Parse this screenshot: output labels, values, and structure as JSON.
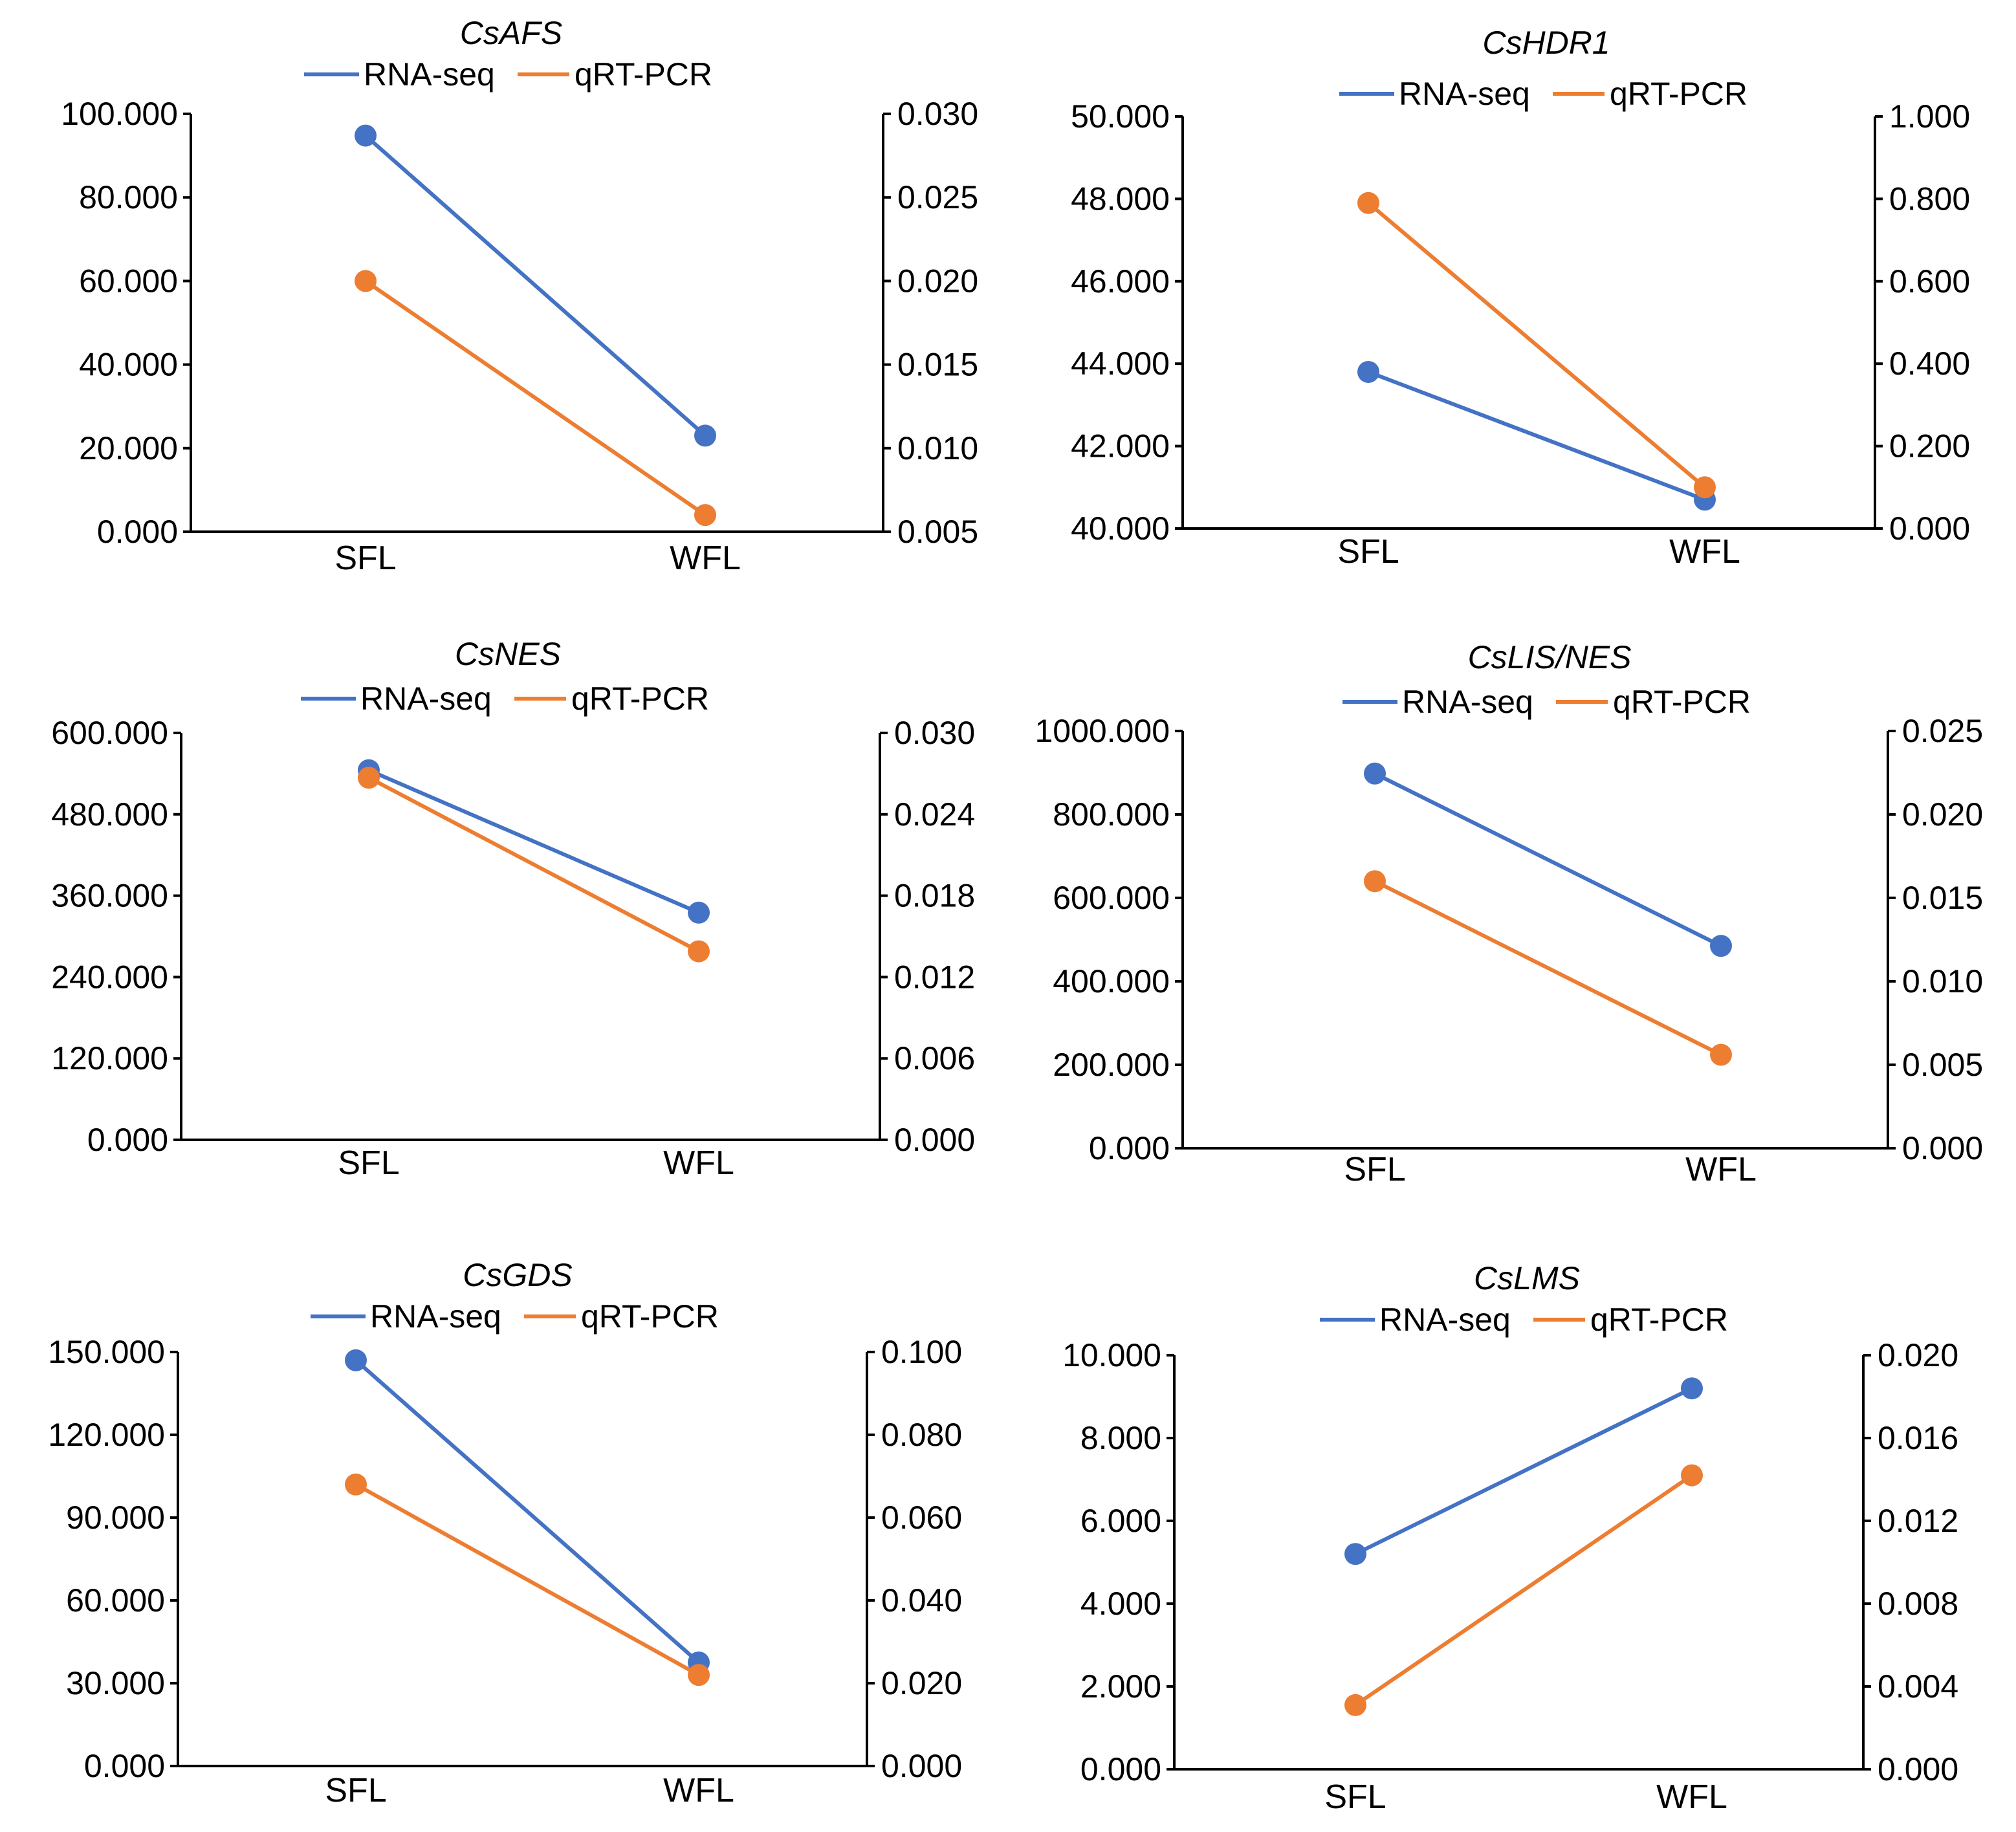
{
  "colors": {
    "rna_seq": "#4472C4",
    "qrt_pcr": "#ED7D31",
    "axis": "#000000"
  },
  "legend": {
    "rna_seq": "RNA-seq",
    "qrt_pcr": "qRT-PCR"
  },
  "chart_data": [
    {
      "type": "line",
      "title": "CsAFS",
      "categories": [
        "SFL",
        "WFL"
      ],
      "series": [
        {
          "name": "RNA-seq",
          "axis": "left",
          "values": [
            94.8,
            23.0
          ]
        },
        {
          "name": "qRT-PCR",
          "axis": "right",
          "values": [
            0.02,
            0.006
          ]
        }
      ],
      "y_left": {
        "min": 0,
        "max": 100,
        "ticks": [
          "100.000",
          "80.000",
          "60.000",
          "40.000",
          "20.000",
          "0.000"
        ]
      },
      "y_right": {
        "min": 0.005,
        "max": 0.03,
        "ticks": [
          "0.030",
          "0.025",
          "0.020",
          "0.015",
          "0.010",
          "0.005"
        ]
      }
    },
    {
      "type": "line",
      "title": "CsHDR1",
      "categories": [
        "SFL",
        "WFL"
      ],
      "series": [
        {
          "name": "RNA-seq",
          "axis": "left",
          "values": [
            43.8,
            40.7
          ]
        },
        {
          "name": "qRT-PCR",
          "axis": "right",
          "values": [
            0.79,
            0.1
          ]
        }
      ],
      "y_left": {
        "min": 40,
        "max": 50,
        "ticks": [
          "50.000",
          "48.000",
          "46.000",
          "44.000",
          "42.000",
          "40.000"
        ]
      },
      "y_right": {
        "min": 0,
        "max": 1.0,
        "ticks": [
          "1.000",
          "0.800",
          "0.600",
          "0.400",
          "0.200",
          "0.000"
        ]
      }
    },
    {
      "type": "line",
      "title": "CsNES",
      "categories": [
        "SFL",
        "WFL"
      ],
      "series": [
        {
          "name": "RNA-seq",
          "axis": "left",
          "values": [
            545,
            335
          ]
        },
        {
          "name": "qRT-PCR",
          "axis": "right",
          "values": [
            0.0267,
            0.0139
          ]
        }
      ],
      "y_left": {
        "min": 0,
        "max": 600,
        "ticks": [
          "600.000",
          "480.000",
          "360.000",
          "240.000",
          "120.000",
          "0.000"
        ]
      },
      "y_right": {
        "min": 0,
        "max": 0.03,
        "ticks": [
          "0.030",
          "0.024",
          "0.018",
          "0.012",
          "0.006",
          "0.000"
        ]
      }
    },
    {
      "type": "line",
      "title": "CsLIS/NES",
      "categories": [
        "SFL",
        "WFL"
      ],
      "series": [
        {
          "name": "RNA-seq",
          "axis": "left",
          "values": [
            898,
            485
          ]
        },
        {
          "name": "qRT-PCR",
          "axis": "right",
          "values": [
            0.016,
            0.0056
          ]
        }
      ],
      "y_left": {
        "min": 0,
        "max": 1000,
        "ticks": [
          "1000.000",
          "800.000",
          "600.000",
          "400.000",
          "200.000",
          "0.000"
        ]
      },
      "y_right": {
        "min": 0,
        "max": 0.025,
        "ticks": [
          "0.025",
          "0.020",
          "0.015",
          "0.010",
          "0.005",
          "0.000"
        ]
      }
    },
    {
      "type": "line",
      "title": "CsGDS",
      "categories": [
        "SFL",
        "WFL"
      ],
      "series": [
        {
          "name": "RNA-seq",
          "axis": "left",
          "values": [
            147.0,
            37.5
          ]
        },
        {
          "name": "qRT-PCR",
          "axis": "right",
          "values": [
            0.068,
            0.022
          ]
        }
      ],
      "y_left": {
        "min": 0,
        "max": 150,
        "ticks": [
          "150.000",
          "120.000",
          "90.000",
          "60.000",
          "30.000",
          "0.000"
        ]
      },
      "y_right": {
        "min": 0,
        "max": 0.1,
        "ticks": [
          "0.100",
          "0.080",
          "0.060",
          "0.040",
          "0.020",
          "0.000"
        ]
      }
    },
    {
      "type": "line",
      "title": "CsLMS",
      "categories": [
        "SFL",
        "WFL"
      ],
      "series": [
        {
          "name": "RNA-seq",
          "axis": "left",
          "values": [
            5.2,
            9.2
          ]
        },
        {
          "name": "qRT-PCR",
          "axis": "right",
          "values": [
            0.0031,
            0.0142
          ]
        }
      ],
      "y_left": {
        "min": 0,
        "max": 10,
        "ticks": [
          "10.000",
          "8.000",
          "6.000",
          "4.000",
          "2.000",
          "0.000"
        ]
      },
      "y_right": {
        "min": 0,
        "max": 0.02,
        "ticks": [
          "0.020",
          "0.016",
          "0.012",
          "0.008",
          "0.004",
          "0.000"
        ]
      }
    }
  ]
}
